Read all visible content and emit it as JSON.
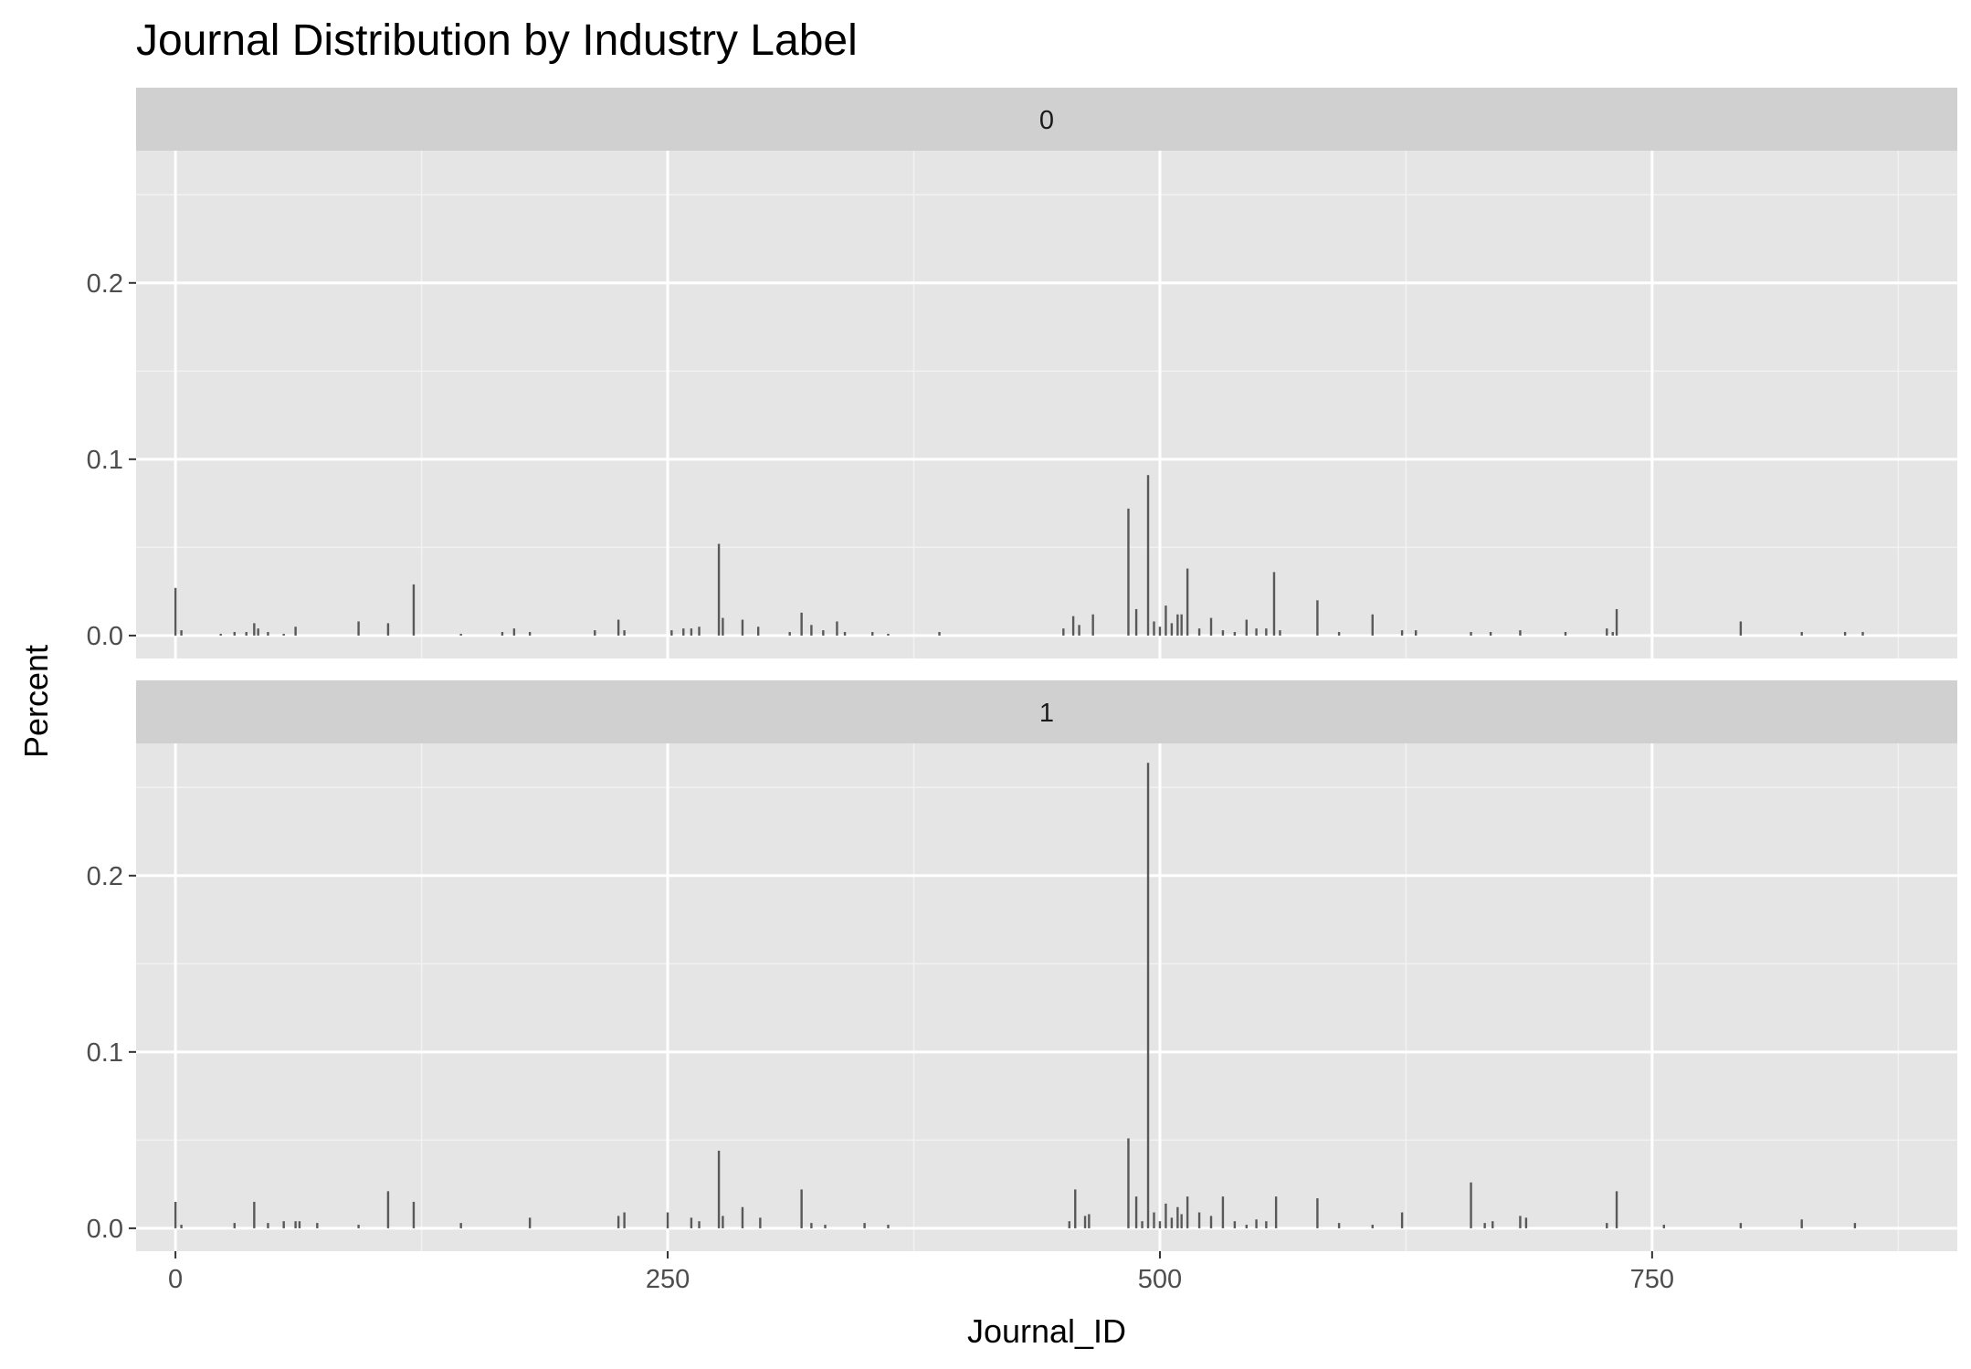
{
  "chart_data": {
    "type": "bar",
    "title": "Journal Distribution by Industry Label",
    "xlabel": "Journal_ID",
    "ylabel": "Percent",
    "xlim": [
      -20,
      905
    ],
    "ylim": [
      -0.013,
      0.275
    ],
    "x_ticks": [
      0,
      250,
      500,
      750
    ],
    "x_tick_labels": [
      "0",
      "250",
      "500",
      "750"
    ],
    "y_ticks": [
      0.0,
      0.1,
      0.2
    ],
    "y_tick_labels": [
      "0.0",
      "0.1",
      "0.2"
    ],
    "grid": true,
    "legend": "none",
    "bar_color": "#595959",
    "panel_background": "#e5e5e5",
    "strip_background": "#d0d0d0",
    "facets": [
      {
        "label": "0",
        "x": [
          0,
          3,
          23,
          30,
          36,
          40,
          42,
          47,
          55,
          61,
          93,
          108,
          121,
          145,
          166,
          172,
          180,
          213,
          225,
          228,
          252,
          258,
          262,
          266,
          276,
          278,
          288,
          296,
          312,
          318,
          323,
          329,
          336,
          340,
          354,
          362,
          388,
          451,
          456,
          459,
          466,
          484,
          488,
          494,
          497,
          500,
          503,
          506,
          509,
          511,
          514,
          520,
          526,
          532,
          538,
          544,
          549,
          554,
          558,
          561,
          580,
          591,
          608,
          623,
          630,
          658,
          668,
          683,
          706,
          727,
          730,
          732,
          795,
          826,
          848,
          857
        ],
        "values": [
          0.027,
          0.003,
          0.001,
          0.002,
          0.002,
          0.007,
          0.004,
          0.002,
          0.001,
          0.005,
          0.008,
          0.007,
          0.029,
          0.001,
          0.002,
          0.004,
          0.002,
          0.003,
          0.009,
          0.003,
          0.003,
          0.004,
          0.004,
          0.005,
          0.052,
          0.01,
          0.009,
          0.005,
          0.002,
          0.013,
          0.006,
          0.003,
          0.008,
          0.002,
          0.002,
          0.001,
          0.002,
          0.004,
          0.011,
          0.006,
          0.012,
          0.072,
          0.015,
          0.091,
          0.008,
          0.005,
          0.017,
          0.007,
          0.012,
          0.012,
          0.038,
          0.004,
          0.01,
          0.003,
          0.002,
          0.009,
          0.004,
          0.004,
          0.036,
          0.003,
          0.02,
          0.002,
          0.012,
          0.003,
          0.003,
          0.002,
          0.002,
          0.003,
          0.002,
          0.004,
          0.002,
          0.015,
          0.008,
          0.002,
          0.002,
          0.002
        ]
      },
      {
        "label": "1",
        "x": [
          0,
          3,
          30,
          40,
          47,
          55,
          61,
          63,
          72,
          93,
          108,
          121,
          145,
          180,
          225,
          228,
          250,
          262,
          266,
          276,
          278,
          288,
          297,
          318,
          323,
          330,
          350,
          362,
          454,
          457,
          462,
          464,
          484,
          488,
          491,
          494,
          497,
          500,
          503,
          506,
          509,
          511,
          514,
          520,
          526,
          532,
          538,
          544,
          549,
          554,
          559,
          580,
          591,
          608,
          623,
          658,
          665,
          669,
          683,
          686,
          727,
          732,
          756,
          795,
          826,
          853
        ],
        "values": [
          0.015,
          0.002,
          0.003,
          0.015,
          0.003,
          0.004,
          0.004,
          0.004,
          0.003,
          0.002,
          0.021,
          0.015,
          0.003,
          0.006,
          0.007,
          0.009,
          0.009,
          0.006,
          0.004,
          0.044,
          0.007,
          0.012,
          0.006,
          0.022,
          0.003,
          0.002,
          0.003,
          0.002,
          0.004,
          0.022,
          0.007,
          0.008,
          0.051,
          0.018,
          0.004,
          0.264,
          0.009,
          0.004,
          0.014,
          0.006,
          0.012,
          0.008,
          0.018,
          0.009,
          0.007,
          0.018,
          0.004,
          0.002,
          0.005,
          0.004,
          0.018,
          0.017,
          0.003,
          0.002,
          0.009,
          0.026,
          0.003,
          0.004,
          0.007,
          0.006,
          0.003,
          0.021,
          0.002,
          0.003,
          0.005,
          0.003
        ]
      }
    ]
  }
}
